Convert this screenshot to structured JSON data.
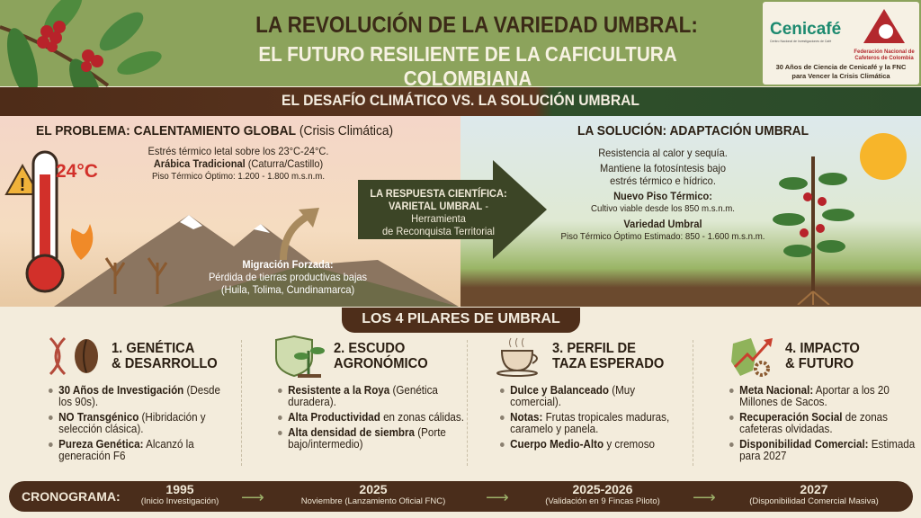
{
  "header": {
    "title_line1": "LA REVOLUCIÓN DE LA VARIEDAD UMBRAL:",
    "title_line2": "EL FUTURO RESILIENTE DE LA CAFICULTURA COLOMBIANA",
    "logo_cenicafe": "Cenicafé",
    "logo_cenicafe_sub": "Centro Nacional de Investigaciones de Café",
    "logo_fnc": "Federación Nacional de Cafeteros de Colombia",
    "tagline_line1": "30 Años de Ciencia de Cenicafé y la FNC",
    "tagline_line2": "para Vencer la Crisis Climática"
  },
  "band": {
    "title": "EL DESAFÍO CLIMÁTICO  VS.  LA SOLUCIÓN UMBRAL"
  },
  "problem": {
    "title": "EL PROBLEMA: CALENTAMIENTO GLOBAL",
    "title_note": "(Crisis Climática)",
    "temp": "24°C",
    "line1": "Estrés térmico letal sobre los 23°C-24°C.",
    "variety": "Arábica Tradicional",
    "variety_note": "(Caturra/Castillo)",
    "altitude": "Piso Térmico Óptimo: 1.200 - 1.800 m.s.n.m.",
    "migration_title": "Migración Forzada:",
    "migration_line1": "Pérdida de tierras productivas bajas",
    "migration_line2": "(Huila, Tolima, Cundinamarca)"
  },
  "response": {
    "line1": "LA RESPUESTA CIENTÍFICA:",
    "line2_bold": "VARIETAL UMBRAL",
    "line2_rest": " - Herramienta",
    "line3": "de Reconquista Territorial"
  },
  "solution": {
    "title": "LA SOLUCIÓN: ADAPTACIÓN UMBRAL",
    "line1": "Resistencia al calor y sequía.",
    "line2": "Mantiene la fotosíntesis bajo",
    "line3": "estrés térmico e hídrico.",
    "new_floor_title": "Nuevo Piso Térmico:",
    "new_floor_text": "Cultivo viable desde los 850 m.s.n.m.",
    "variety_title": "Variedad Umbral",
    "variety_text": "Piso Térmico Óptimo Estimado: 850 - 1.600 m.s.n.m."
  },
  "pillars": {
    "title": "LOS 4 PILARES DE UMBRAL",
    "items": [
      {
        "title1": "1. GENÉTICA",
        "title2": "& DESARROLLO",
        "bullets": [
          {
            "bold": "30 Años de Investigación",
            "text": " (Desde los 90s)."
          },
          {
            "bold": "NO Transgénico",
            "text": " (Hibridación y selección clásica)."
          },
          {
            "bold": "Pureza Genética:",
            "text": " Alcanzó la generación F6"
          }
        ]
      },
      {
        "title1": "2. ESCUDO",
        "title2": "AGRONÓMICO",
        "bullets": [
          {
            "bold": "Resistente a la Roya",
            "text": " (Genética duradera)."
          },
          {
            "bold": "Alta Productividad",
            "text": " en zonas cálidas."
          },
          {
            "bold": "Alta densidad de siembra",
            "text": " (Porte bajo/intermedio)"
          }
        ]
      },
      {
        "title1": "3. PERFIL DE",
        "title2": "TAZA ESPERADO",
        "bullets": [
          {
            "bold": "Dulce y Balanceado",
            "text": " (Muy comercial)."
          },
          {
            "bold": "Notas:",
            "text": " Frutas tropicales maduras, caramelo y panela."
          },
          {
            "bold": "Cuerpo Medio-Alto",
            "text": " y cremoso"
          }
        ]
      },
      {
        "title1": "4. IMPACTO",
        "title2": "& FUTURO",
        "bullets": [
          {
            "bold": "Meta Nacional:",
            "text": " Aportar a los 20 Millones de Sacos."
          },
          {
            "bold": "Recuperación Social",
            "text": " de zonas cafeteras olvidadas."
          },
          {
            "bold": "Disponibilidad Comercial:",
            "text": " Estimada para 2027"
          }
        ]
      }
    ]
  },
  "timeline": {
    "label": "CRONOGRAMA:",
    "events": [
      {
        "year": "1995",
        "desc": "(Inicio Investigación)"
      },
      {
        "year": "2025",
        "desc": "Noviembre (Lanzamiento Oficial FNC)"
      },
      {
        "year": "2025-2026",
        "desc": "(Validación en 9 Fincas Piloto)"
      },
      {
        "year": "2027",
        "desc": "(Disponibilidad Comercial Masiva)"
      }
    ]
  },
  "colors": {
    "header_green": "#8ca35c",
    "brown": "#4e2c18",
    "dark_green": "#2b4a29",
    "alert_red": "#d2302a",
    "cream": "#f3ecdc"
  }
}
